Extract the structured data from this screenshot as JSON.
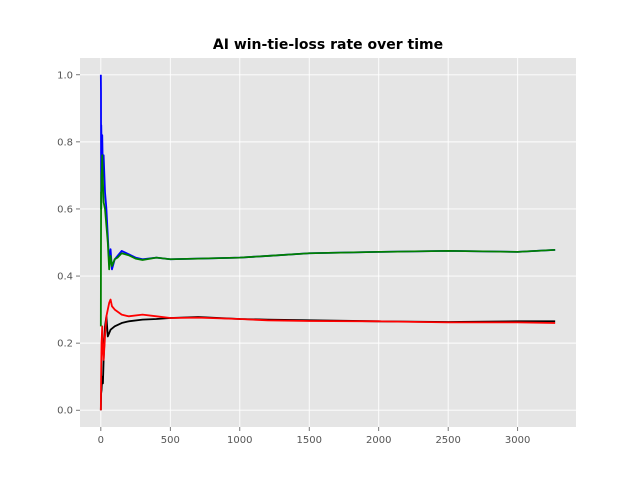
{
  "chart_data": {
    "type": "line",
    "title": "AI win-tie-loss rate over time",
    "xlabel": "",
    "ylabel": "",
    "xlim": [
      -150,
      3420
    ],
    "ylim": [
      -0.05,
      1.05
    ],
    "x_ticks": [
      0,
      500,
      1000,
      1500,
      2000,
      2500,
      3000
    ],
    "y_ticks": [
      0.0,
      0.2,
      0.4,
      0.6,
      0.8,
      1.0
    ],
    "x_tick_labels": [
      "0",
      "500",
      "1000",
      "1500",
      "2000",
      "2500",
      "3000"
    ],
    "y_tick_labels": [
      "0.0",
      "0.2",
      "0.4",
      "0.6",
      "0.8",
      "1.0"
    ],
    "grid": true,
    "legend": "none",
    "background": "#e5e5e5",
    "series": [
      {
        "color": "#0000ff",
        "x": [
          0,
          1,
          2,
          3,
          5,
          8,
          10,
          15,
          20,
          30,
          40,
          50,
          60,
          70,
          80,
          100,
          120,
          150,
          200,
          250,
          300,
          400,
          500,
          700,
          1000,
          1200,
          1500,
          2000,
          2500,
          3000,
          3270
        ],
        "y": [
          1.0,
          0.95,
          0.6,
          0.85,
          0.8,
          0.75,
          0.82,
          0.7,
          0.76,
          0.65,
          0.6,
          0.52,
          0.44,
          0.48,
          0.42,
          0.45,
          0.46,
          0.475,
          0.465,
          0.455,
          0.45,
          0.455,
          0.45,
          0.452,
          0.455,
          0.46,
          0.468,
          0.472,
          0.475,
          0.472,
          0.478
        ]
      },
      {
        "color": "#008000",
        "x": [
          0,
          1,
          2,
          3,
          5,
          8,
          10,
          15,
          20,
          30,
          40,
          50,
          60,
          70,
          80,
          100,
          120,
          150,
          200,
          250,
          300,
          400,
          500,
          700,
          1000,
          1200,
          1500,
          2000,
          2500,
          3000,
          3270
        ],
        "y": [
          0.25,
          0.5,
          0.65,
          0.6,
          0.7,
          0.72,
          0.76,
          0.68,
          0.62,
          0.6,
          0.55,
          0.5,
          0.42,
          0.46,
          0.43,
          0.45,
          0.455,
          0.468,
          0.462,
          0.452,
          0.448,
          0.455,
          0.45,
          0.452,
          0.455,
          0.46,
          0.468,
          0.472,
          0.475,
          0.472,
          0.478
        ]
      },
      {
        "color": "#000000",
        "x": [
          0,
          2,
          5,
          10,
          15,
          20,
          30,
          40,
          50,
          70,
          100,
          150,
          200,
          300,
          400,
          500,
          700,
          1000,
          1200,
          1500,
          2000,
          2500,
          3000,
          3270
        ],
        "y": [
          0.0,
          0.05,
          0.06,
          0.1,
          0.08,
          0.15,
          0.25,
          0.28,
          0.22,
          0.24,
          0.25,
          0.26,
          0.265,
          0.27,
          0.272,
          0.275,
          0.278,
          0.272,
          0.27,
          0.268,
          0.265,
          0.263,
          0.265,
          0.265
        ]
      },
      {
        "color": "#ff0000",
        "x": [
          0,
          2,
          5,
          10,
          15,
          20,
          30,
          40,
          50,
          60,
          70,
          80,
          100,
          150,
          200,
          300,
          400,
          500,
          700,
          1000,
          1200,
          1500,
          2000,
          2500,
          3000,
          3270
        ],
        "y": [
          0.0,
          0.1,
          0.2,
          0.25,
          0.18,
          0.15,
          0.22,
          0.28,
          0.3,
          0.32,
          0.33,
          0.31,
          0.3,
          0.285,
          0.28,
          0.285,
          0.28,
          0.275,
          0.276,
          0.272,
          0.268,
          0.266,
          0.265,
          0.262,
          0.262,
          0.26
        ]
      }
    ]
  }
}
